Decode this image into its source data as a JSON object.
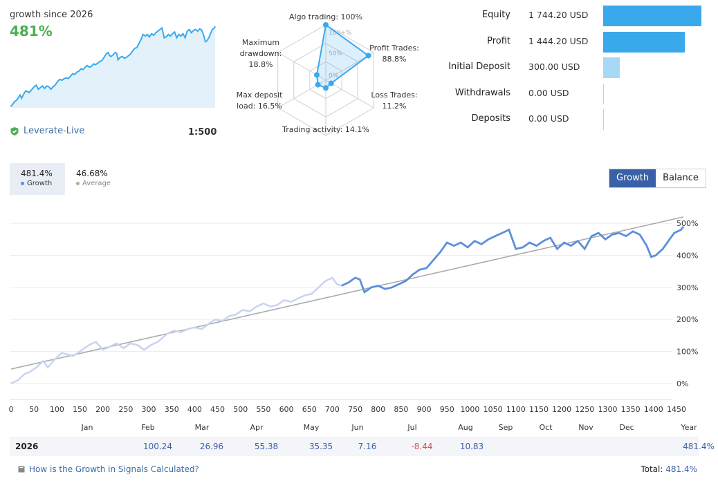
{
  "summary": {
    "growth_title": "growth since 2026",
    "growth_value": "481%",
    "account_name": "Leverate-Live",
    "leverage": "1:500"
  },
  "radar": {
    "axes": [
      {
        "label_lines": [
          "Algo trading: 100%"
        ],
        "value": 100
      },
      {
        "label_lines": [
          "Profit Trades:",
          "88.8%"
        ],
        "value": 88.8
      },
      {
        "label_lines": [
          "Loss Trades:",
          "11.2%"
        ],
        "value": 11.2
      },
      {
        "label_lines": [
          "Trading activity: 14.1%"
        ],
        "value": 14.1
      },
      {
        "label_lines": [
          "Max deposit",
          "load: 16.5%"
        ],
        "value": 16.5
      },
      {
        "label_lines": [
          "Maximum",
          "drawdown:",
          "18.8%"
        ],
        "value": 18.8
      }
    ],
    "scale_labels": [
      "100+%",
      "50%",
      "0%"
    ]
  },
  "stats": [
    {
      "label": "Equity",
      "value": "1 744.20 USD",
      "amount": 1744.2,
      "color": "#3aa9ec"
    },
    {
      "label": "Profit",
      "value": "1 444.20 USD",
      "amount": 1444.2,
      "color": "#3aa9ec"
    },
    {
      "label": "Initial Deposit",
      "value": "300.00 USD",
      "amount": 300.0,
      "color": "#a7d8f7"
    },
    {
      "label": "Withdrawals",
      "value": "0.00 USD",
      "amount": 0,
      "color": "#a7d8f7"
    },
    {
      "label": "Deposits",
      "value": "0.00 USD",
      "amount": 0,
      "color": "#a7d8f7"
    }
  ],
  "legend": {
    "growth_value": "481.4%",
    "growth_name": "Growth",
    "average_value": "46.68%",
    "average_name": "Average"
  },
  "toggle": {
    "growth": "Growth",
    "balance": "Balance"
  },
  "chart_data": {
    "type": "line",
    "xlabel": "",
    "ylabel": "",
    "xlim": [
      0,
      1450
    ],
    "ylim": [
      -50,
      550
    ],
    "x_ticks": [
      0,
      50,
      100,
      150,
      200,
      250,
      300,
      350,
      400,
      450,
      500,
      550,
      600,
      650,
      700,
      750,
      800,
      850,
      900,
      950,
      1000,
      1050,
      1100,
      1150,
      1200,
      1250,
      1300,
      1350,
      1400,
      1450
    ],
    "y_ticks": [
      0,
      100,
      200,
      300,
      400,
      500
    ],
    "y_tick_labels": [
      "0%",
      "100%",
      "200%",
      "300%",
      "400%",
      "500%"
    ],
    "grid": true,
    "series": [
      {
        "name": "Growth",
        "color": "#5b8fdb",
        "highlight_from_x": 720,
        "faded_color": "#c9d3f0",
        "points": [
          [
            0,
            0
          ],
          [
            15,
            10
          ],
          [
            30,
            30
          ],
          [
            40,
            35
          ],
          [
            55,
            50
          ],
          [
            70,
            70
          ],
          [
            80,
            50
          ],
          [
            95,
            75
          ],
          [
            110,
            95
          ],
          [
            125,
            90
          ],
          [
            135,
            85
          ],
          [
            150,
            100
          ],
          [
            170,
            120
          ],
          [
            185,
            130
          ],
          [
            200,
            105
          ],
          [
            215,
            115
          ],
          [
            230,
            125
          ],
          [
            245,
            110
          ],
          [
            260,
            125
          ],
          [
            275,
            120
          ],
          [
            290,
            105
          ],
          [
            305,
            120
          ],
          [
            320,
            130
          ],
          [
            340,
            155
          ],
          [
            355,
            165
          ],
          [
            370,
            160
          ],
          [
            385,
            170
          ],
          [
            400,
            175
          ],
          [
            415,
            170
          ],
          [
            430,
            185
          ],
          [
            445,
            200
          ],
          [
            460,
            195
          ],
          [
            475,
            210
          ],
          [
            490,
            215
          ],
          [
            505,
            230
          ],
          [
            520,
            225
          ],
          [
            535,
            240
          ],
          [
            550,
            250
          ],
          [
            565,
            240
          ],
          [
            580,
            245
          ],
          [
            595,
            260
          ],
          [
            610,
            255
          ],
          [
            625,
            265
          ],
          [
            640,
            275
          ],
          [
            655,
            280
          ],
          [
            670,
            300
          ],
          [
            685,
            320
          ],
          [
            700,
            330
          ],
          [
            710,
            310
          ],
          [
            720,
            305
          ],
          [
            735,
            315
          ],
          [
            750,
            330
          ],
          [
            760,
            325
          ],
          [
            770,
            285
          ],
          [
            785,
            300
          ],
          [
            800,
            305
          ],
          [
            815,
            295
          ],
          [
            830,
            300
          ],
          [
            845,
            310
          ],
          [
            860,
            320
          ],
          [
            875,
            340
          ],
          [
            890,
            355
          ],
          [
            905,
            360
          ],
          [
            920,
            385
          ],
          [
            935,
            410
          ],
          [
            950,
            440
          ],
          [
            965,
            430
          ],
          [
            980,
            440
          ],
          [
            995,
            425
          ],
          [
            1010,
            445
          ],
          [
            1025,
            435
          ],
          [
            1040,
            450
          ],
          [
            1055,
            460
          ],
          [
            1070,
            470
          ],
          [
            1085,
            480
          ],
          [
            1100,
            420
          ],
          [
            1115,
            425
          ],
          [
            1130,
            440
          ],
          [
            1145,
            430
          ],
          [
            1160,
            445
          ],
          [
            1175,
            455
          ],
          [
            1190,
            420
          ],
          [
            1205,
            440
          ],
          [
            1220,
            430
          ],
          [
            1235,
            445
          ],
          [
            1250,
            420
          ],
          [
            1265,
            460
          ],
          [
            1280,
            470
          ],
          [
            1295,
            450
          ],
          [
            1310,
            465
          ],
          [
            1325,
            470
          ],
          [
            1340,
            460
          ],
          [
            1355,
            475
          ],
          [
            1370,
            465
          ],
          [
            1385,
            430
          ],
          [
            1395,
            395
          ],
          [
            1405,
            400
          ],
          [
            1420,
            420
          ],
          [
            1435,
            450
          ],
          [
            1445,
            470
          ],
          [
            1460,
            480
          ],
          [
            1465,
            490
          ]
        ]
      },
      {
        "name": "Average",
        "color": "#aaaaaa",
        "points": [
          [
            0,
            45
          ],
          [
            1465,
            520
          ]
        ]
      }
    ]
  },
  "months": [
    "Jan",
    "Feb",
    "Mar",
    "Apr",
    "May",
    "Jun",
    "Jul",
    "Aug",
    "Sep",
    "Oct",
    "Nov",
    "Dec",
    "Year"
  ],
  "year_row": {
    "year": "2026",
    "values": [
      "",
      "100.24",
      "26.96",
      "55.38",
      "35.35",
      "7.16",
      "-8.44",
      "10.83",
      "",
      "",
      "",
      "",
      "481.4%"
    ]
  },
  "footer": {
    "calc_link": "How is the Growth in Signals Calculated?",
    "total_label": "Total:",
    "total_value": "481.4%"
  }
}
